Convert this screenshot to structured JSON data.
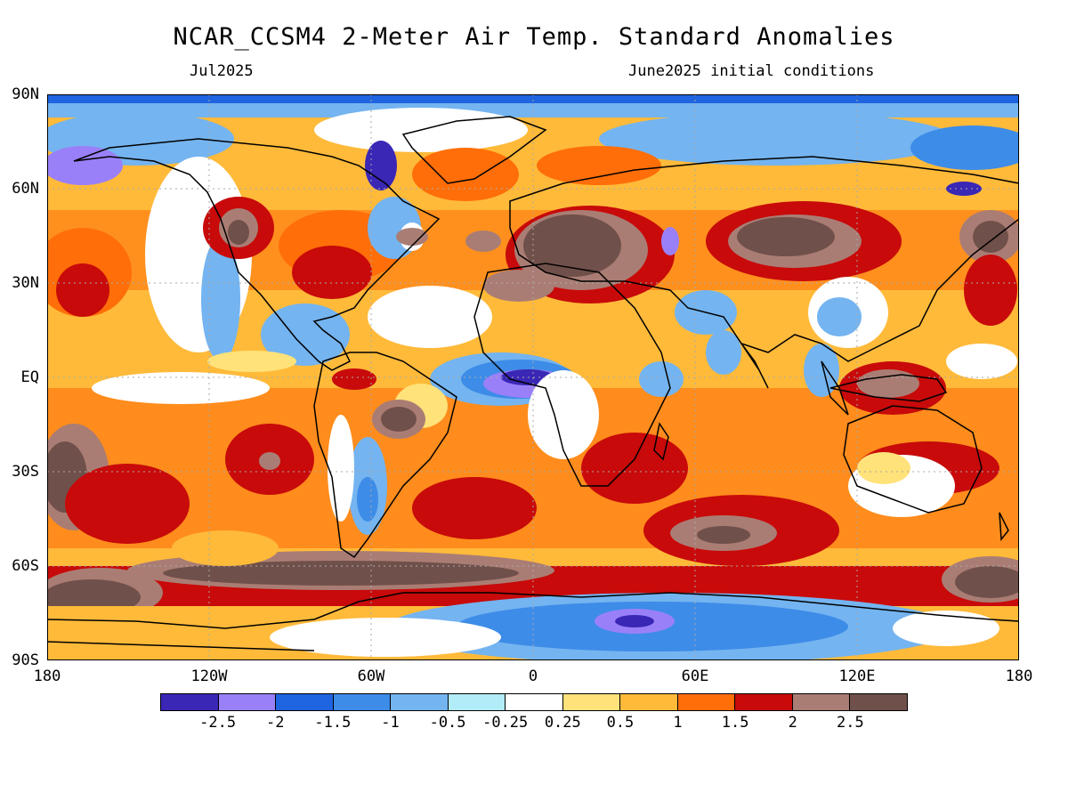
{
  "title": "NCAR_CCSM4 2-Meter Air Temp. Standard Anomalies",
  "valid_month": "Jul2025",
  "init_label": "June2025 initial conditions",
  "lat_labels": [
    "90N",
    "60N",
    "30N",
    "EQ",
    "30S",
    "60S",
    "90S"
  ],
  "lon_labels": [
    "180",
    "120W",
    "60W",
    "0",
    "60E",
    "120E",
    "180"
  ],
  "colorbar": {
    "colors": [
      "#3a27b6",
      "#9a80f8",
      "#1f64e0",
      "#3d8ce8",
      "#74b4f0",
      "#b2ecf8",
      "#ffffff",
      "#ffe27a",
      "#ffba3a",
      "#ff6e08",
      "#c80a0a",
      "#aa7d74",
      "#70504a"
    ],
    "labels": [
      "-2.5",
      "-2",
      "-1.5",
      "-1",
      "-0.5",
      "-0.25",
      "0.25",
      "0.5",
      "1",
      "1.5",
      "2",
      "2.5"
    ]
  }
}
